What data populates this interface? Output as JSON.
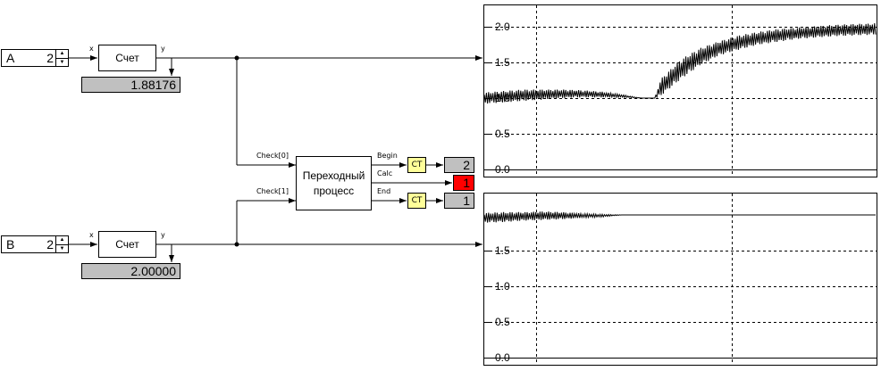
{
  "inputs": [
    {
      "name": "A",
      "value": "2"
    },
    {
      "name": "B",
      "value": "2"
    }
  ],
  "spin_arrows": {
    "up": "▲",
    "down": "▼"
  },
  "counters": [
    {
      "label": "Счет",
      "in_port": "x",
      "out_port": "y",
      "display": "1.88176"
    },
    {
      "label": "Счет",
      "in_port": "x",
      "out_port": "y",
      "display": "2.00000"
    }
  ],
  "transition": {
    "label_line1": "Переходный",
    "label_line2": "процесс",
    "inputs": [
      "Check[0]",
      "Check[1]"
    ],
    "outputs": [
      "Begin",
      "Calc",
      "End"
    ]
  },
  "ct_label": "CT",
  "outputs": {
    "begin": "2",
    "calc": "1",
    "end": "1"
  },
  "colors": {
    "display_bg": "#c0c0c0",
    "alarm": "#ff0000",
    "ct_bg": "#ffff99",
    "trace": "#000000"
  },
  "chart_data": [
    {
      "type": "line",
      "y_ticks": [
        "2.0",
        "1.5",
        "1.0",
        "0.5",
        "0.0"
      ],
      "ylim": [
        0.0,
        2.0
      ],
      "grid": true,
      "series": [
        {
          "kind": "oscillating-band",
          "x": [
            0,
            10,
            20,
            30,
            40,
            50,
            60,
            70,
            80,
            87,
            90,
            100,
            110,
            120,
            130,
            140,
            150,
            160,
            170,
            180,
            190,
            200
          ],
          "center": [
            1.0,
            1.02,
            1.04,
            1.05,
            1.06,
            1.06,
            1.05,
            1.03,
            1.0,
            1.0,
            1.15,
            1.4,
            1.58,
            1.7,
            1.78,
            1.84,
            1.88,
            1.91,
            1.93,
            1.95,
            1.96,
            1.97
          ],
          "amplitude": [
            0.08,
            0.08,
            0.08,
            0.07,
            0.06,
            0.05,
            0.04,
            0.02,
            0.0,
            0.0,
            0.12,
            0.14,
            0.12,
            0.1,
            0.1,
            0.09,
            0.09,
            0.08,
            0.08,
            0.08,
            0.08,
            0.08
          ]
        }
      ]
    },
    {
      "type": "line",
      "y_ticks": [
        "1.5",
        "1.0",
        "0.5",
        "0.0"
      ],
      "ylim": [
        0.0,
        2.0
      ],
      "grid": true,
      "series": [
        {
          "kind": "oscillating-band",
          "x": [
            0,
            10,
            20,
            30,
            40,
            50,
            60,
            70,
            80,
            90,
            100,
            110,
            120,
            130,
            140,
            150,
            160,
            170,
            180,
            190,
            200
          ],
          "center": [
            1.96,
            1.97,
            1.98,
            1.99,
            1.99,
            1.99,
            1.99,
            2.0,
            2.0,
            2.0,
            2.0,
            2.0,
            2.0,
            2.0,
            2.0,
            2.0,
            2.0,
            2.0,
            2.0,
            2.0,
            2.0
          ],
          "amplitude": [
            0.07,
            0.07,
            0.06,
            0.06,
            0.05,
            0.03,
            0.02,
            0.0,
            0.0,
            0.0,
            0.0,
            0.0,
            0.0,
            0.0,
            0.0,
            0.0,
            0.0,
            0.0,
            0.0,
            0.0,
            0.0
          ]
        }
      ]
    }
  ]
}
